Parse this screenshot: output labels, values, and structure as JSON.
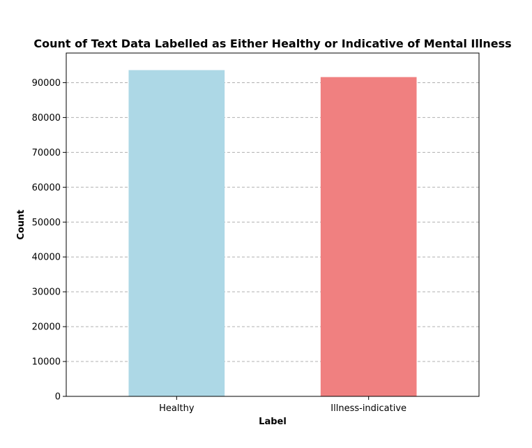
{
  "chart_data": {
    "type": "bar",
    "title": "Count of Text Data Labelled as Either Healthy or Indicative of Mental Illness",
    "xlabel": "Label",
    "ylabel": "Count",
    "categories": [
      "Healthy",
      "Illness-indicative"
    ],
    "values": [
      93600,
      91600
    ],
    "bar_colors": [
      "#add8e6",
      "#f08080"
    ],
    "ylim": [
      0,
      98500
    ],
    "yticks": [
      0,
      10000,
      20000,
      30000,
      40000,
      50000,
      60000,
      70000,
      80000,
      90000
    ],
    "grid": {
      "axis": "y",
      "style": "dashed",
      "color": "#b0b0b0"
    },
    "legend": "none"
  }
}
